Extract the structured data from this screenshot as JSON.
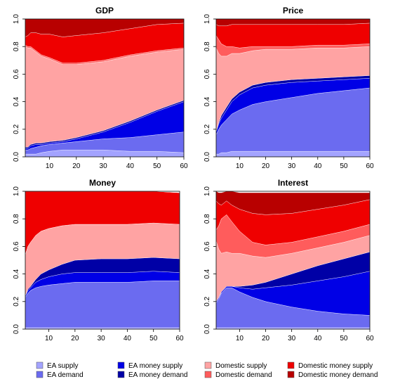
{
  "legend": [
    {
      "label": "EA supply",
      "color": "#a3a3ff"
    },
    {
      "label": "EA demand",
      "color": "#6b6bf0"
    },
    {
      "label": "EA money supply",
      "color": "#0000e6"
    },
    {
      "label": "EA money demand",
      "color": "#0000a6"
    },
    {
      "label": "Domestic supply",
      "color": "#ffa3a3"
    },
    {
      "label": "Domestic demand",
      "color": "#ff5c5c"
    },
    {
      "label": "Domestic money supply",
      "color": "#ef0000"
    },
    {
      "label": "Domestic money demand",
      "color": "#b80000"
    }
  ],
  "chart_data": [
    {
      "type": "area",
      "title": "GDP",
      "xlim": [
        1,
        60
      ],
      "ylim": [
        0,
        1
      ],
      "x_ticks": [
        10,
        20,
        30,
        40,
        50,
        60
      ],
      "y_ticks": [
        "0.0",
        "0.2",
        "0.4",
        "0.6",
        "0.8",
        "1.0"
      ],
      "x": [
        1,
        2,
        3,
        5,
        7,
        10,
        15,
        20,
        30,
        40,
        50,
        60
      ],
      "series": [
        {
          "name": "EA supply",
          "values": [
            0.02,
            0.02,
            0.02,
            0.02,
            0.03,
            0.04,
            0.05,
            0.05,
            0.05,
            0.04,
            0.04,
            0.03
          ]
        },
        {
          "name": "EA demand",
          "values": [
            0.03,
            0.03,
            0.04,
            0.05,
            0.05,
            0.05,
            0.05,
            0.06,
            0.08,
            0.1,
            0.12,
            0.15
          ]
        },
        {
          "name": "EA money supply",
          "values": [
            0.01,
            0.01,
            0.02,
            0.02,
            0.01,
            0.01,
            0.01,
            0.02,
            0.05,
            0.11,
            0.17,
            0.22
          ]
        },
        {
          "name": "EA money demand",
          "values": [
            0.01,
            0.01,
            0.01,
            0.01,
            0.01,
            0.01,
            0.01,
            0.01,
            0.01,
            0.01,
            0.01,
            0.01
          ]
        },
        {
          "name": "Domestic supply",
          "values": [
            0.73,
            0.72,
            0.7,
            0.66,
            0.63,
            0.6,
            0.55,
            0.53,
            0.5,
            0.47,
            0.42,
            0.37
          ]
        },
        {
          "name": "Domestic demand",
          "values": [
            0.01,
            0.01,
            0.01,
            0.01,
            0.01,
            0.01,
            0.01,
            0.01,
            0.01,
            0.01,
            0.01,
            0.01
          ]
        },
        {
          "name": "Domestic money supply",
          "values": [
            0.06,
            0.08,
            0.1,
            0.13,
            0.15,
            0.17,
            0.19,
            0.2,
            0.2,
            0.19,
            0.19,
            0.18
          ]
        },
        {
          "name": "Domestic money demand",
          "values": [
            0.13,
            0.12,
            0.1,
            0.1,
            0.11,
            0.11,
            0.13,
            0.12,
            0.1,
            0.07,
            0.04,
            0.03
          ]
        }
      ]
    },
    {
      "type": "area",
      "title": "Price",
      "xlim": [
        1,
        60
      ],
      "ylim": [
        0,
        1
      ],
      "x_ticks": [
        10,
        20,
        30,
        40,
        50,
        60
      ],
      "y_ticks": [
        "0.0",
        "0.2",
        "0.4",
        "0.6",
        "0.8",
        "1.0"
      ],
      "x": [
        1,
        2,
        3,
        5,
        7,
        10,
        15,
        20,
        30,
        40,
        50,
        60
      ],
      "series": [
        {
          "name": "EA supply",
          "values": [
            0.02,
            0.02,
            0.03,
            0.03,
            0.04,
            0.04,
            0.04,
            0.04,
            0.04,
            0.04,
            0.04,
            0.04
          ]
        },
        {
          "name": "EA demand",
          "values": [
            0.14,
            0.18,
            0.2,
            0.24,
            0.27,
            0.3,
            0.34,
            0.36,
            0.39,
            0.42,
            0.44,
            0.46
          ]
        },
        {
          "name": "EA money supply",
          "values": [
            0.02,
            0.04,
            0.05,
            0.07,
            0.09,
            0.11,
            0.12,
            0.12,
            0.11,
            0.09,
            0.08,
            0.07
          ]
        },
        {
          "name": "EA money demand",
          "values": [
            0.01,
            0.01,
            0.02,
            0.02,
            0.02,
            0.02,
            0.02,
            0.02,
            0.02,
            0.02,
            0.02,
            0.02
          ]
        },
        {
          "name": "Domestic supply",
          "values": [
            0.6,
            0.5,
            0.43,
            0.37,
            0.33,
            0.28,
            0.25,
            0.24,
            0.22,
            0.22,
            0.21,
            0.21
          ]
        },
        {
          "name": "Domestic demand",
          "values": [
            0.09,
            0.1,
            0.09,
            0.07,
            0.05,
            0.04,
            0.03,
            0.02,
            0.02,
            0.02,
            0.02,
            0.02
          ]
        },
        {
          "name": "Domestic money supply",
          "values": [
            0.08,
            0.1,
            0.13,
            0.15,
            0.16,
            0.17,
            0.16,
            0.16,
            0.16,
            0.15,
            0.15,
            0.15
          ]
        },
        {
          "name": "Domestic money demand",
          "values": [
            0.04,
            0.05,
            0.05,
            0.05,
            0.04,
            0.04,
            0.04,
            0.04,
            0.04,
            0.04,
            0.04,
            0.03
          ]
        }
      ]
    },
    {
      "type": "area",
      "title": "Money",
      "xlim": [
        1,
        60
      ],
      "ylim": [
        0,
        1
      ],
      "x_ticks": [
        10,
        20,
        30,
        40,
        50,
        60
      ],
      "y_ticks": [
        "0.0",
        "0.2",
        "0.4",
        "0.6",
        "0.8",
        "1.0"
      ],
      "x": [
        1,
        2,
        3,
        5,
        7,
        10,
        15,
        20,
        30,
        40,
        50,
        60
      ],
      "series": [
        {
          "name": "EA supply",
          "values": [
            0.01,
            0.01,
            0.01,
            0.01,
            0.01,
            0.01,
            0.01,
            0.01,
            0.01,
            0.01,
            0.01,
            0.01
          ]
        },
        {
          "name": "EA demand",
          "values": [
            0.22,
            0.25,
            0.27,
            0.29,
            0.3,
            0.31,
            0.32,
            0.33,
            0.33,
            0.33,
            0.34,
            0.34
          ]
        },
        {
          "name": "EA money supply",
          "values": [
            0.01,
            0.02,
            0.02,
            0.04,
            0.05,
            0.06,
            0.07,
            0.07,
            0.07,
            0.07,
            0.07,
            0.06
          ]
        },
        {
          "name": "EA money demand",
          "values": [
            0.0,
            0.01,
            0.01,
            0.02,
            0.04,
            0.05,
            0.07,
            0.09,
            0.1,
            0.1,
            0.1,
            0.1
          ]
        },
        {
          "name": "Domestic supply",
          "values": [
            0.3,
            0.31,
            0.32,
            0.32,
            0.31,
            0.3,
            0.28,
            0.26,
            0.25,
            0.25,
            0.25,
            0.25
          ]
        },
        {
          "name": "Domestic demand",
          "values": [
            0.0,
            0.0,
            0.0,
            0.0,
            0.0,
            0.0,
            0.0,
            0.0,
            0.0,
            0.0,
            0.0,
            0.0
          ]
        },
        {
          "name": "Domestic money supply",
          "values": [
            0.46,
            0.4,
            0.37,
            0.32,
            0.29,
            0.27,
            0.25,
            0.24,
            0.24,
            0.24,
            0.23,
            0.23
          ]
        },
        {
          "name": "Domestic money demand",
          "values": [
            0.0,
            0.0,
            0.0,
            0.0,
            0.0,
            0.0,
            0.0,
            0.0,
            0.0,
            0.0,
            0.0,
            0.0
          ]
        }
      ]
    },
    {
      "type": "area",
      "title": "Interest",
      "xlim": [
        1,
        60
      ],
      "ylim": [
        0,
        1
      ],
      "x_ticks": [
        10,
        20,
        30,
        40,
        50,
        60
      ],
      "y_ticks": [
        "0.0",
        "0.2",
        "0.4",
        "0.6",
        "0.8",
        "1.0"
      ],
      "x": [
        1,
        2,
        3,
        5,
        7,
        10,
        15,
        20,
        30,
        40,
        50,
        60
      ],
      "series": [
        {
          "name": "EA supply",
          "values": [
            0.01,
            0.01,
            0.01,
            0.01,
            0.01,
            0.01,
            0.01,
            0.01,
            0.01,
            0.01,
            0.01,
            0.01
          ]
        },
        {
          "name": "EA demand",
          "values": [
            0.18,
            0.21,
            0.25,
            0.29,
            0.29,
            0.26,
            0.22,
            0.19,
            0.15,
            0.12,
            0.1,
            0.09
          ]
        },
        {
          "name": "EA money supply",
          "values": [
            0.01,
            0.01,
            0.01,
            0.01,
            0.01,
            0.03,
            0.06,
            0.1,
            0.16,
            0.22,
            0.27,
            0.32
          ]
        },
        {
          "name": "EA money demand",
          "values": [
            0.0,
            0.0,
            0.0,
            0.0,
            0.0,
            0.01,
            0.03,
            0.04,
            0.08,
            0.11,
            0.13,
            0.14
          ]
        },
        {
          "name": "Domestic supply",
          "values": [
            0.44,
            0.35,
            0.28,
            0.25,
            0.24,
            0.24,
            0.21,
            0.18,
            0.15,
            0.13,
            0.12,
            0.12
          ]
        },
        {
          "name": "Domestic demand",
          "values": [
            0.08,
            0.17,
            0.25,
            0.27,
            0.23,
            0.16,
            0.1,
            0.09,
            0.08,
            0.08,
            0.08,
            0.08
          ]
        },
        {
          "name": "Domestic money supply",
          "values": [
            0.21,
            0.16,
            0.1,
            0.1,
            0.12,
            0.16,
            0.21,
            0.22,
            0.21,
            0.2,
            0.19,
            0.18
          ]
        },
        {
          "name": "Domestic money demand",
          "values": [
            0.07,
            0.08,
            0.09,
            0.07,
            0.1,
            0.12,
            0.15,
            0.16,
            0.15,
            0.12,
            0.09,
            0.05
          ]
        }
      ]
    }
  ]
}
